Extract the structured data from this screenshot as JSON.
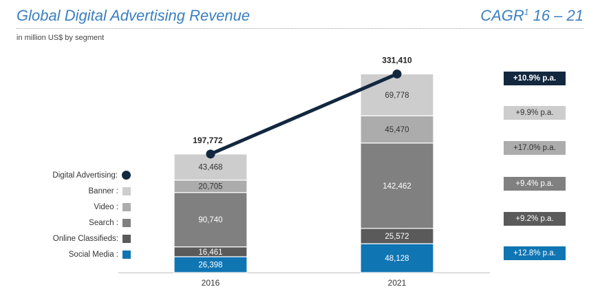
{
  "header": {
    "title": "Global Digital Advertising Revenue",
    "cagr_title": "CAGR",
    "cagr_superscript": "1",
    "cagr_period": " 16 – 21",
    "subtitle": "in million US$ by segment"
  },
  "chart_data": {
    "type": "bar",
    "stacked": true,
    "categories": [
      "2016",
      "2021"
    ],
    "series": [
      {
        "name": "Social Media",
        "values": [
          26398,
          48128
        ],
        "color": "#0f75b3",
        "label_color": "#ffffff"
      },
      {
        "name": "Online Classifieds",
        "values": [
          16461,
          25572
        ],
        "color": "#5a5a5a",
        "label_color": "#ffffff"
      },
      {
        "name": "Search",
        "values": [
          90740,
          142462
        ],
        "color": "#808080",
        "label_color": "#ffffff"
      },
      {
        "name": "Video",
        "values": [
          20705,
          45470
        ],
        "color": "#acacac",
        "label_color": "#333333"
      },
      {
        "name": "Banner",
        "values": [
          43468,
          69778
        ],
        "color": "#cdcdcd",
        "label_color": "#333333"
      }
    ],
    "value_labels": [
      [
        "26,398",
        "16,461",
        "90,740",
        "20,705",
        "43,468"
      ],
      [
        "48,128",
        "25,572",
        "142,462",
        "45,470",
        "69,778"
      ]
    ],
    "total": {
      "name": "Digital Advertising",
      "values": [
        197772,
        331410
      ],
      "labels": [
        "197,772",
        "331,410"
      ],
      "color": "#13283f"
    },
    "ylim": [
      0,
      340000
    ]
  },
  "legend": [
    {
      "label": "Digital Advertising:",
      "type": "dot",
      "color": "#13283f"
    },
    {
      "label": "Banner :",
      "type": "square",
      "color": "#cdcdcd"
    },
    {
      "label": "Video :",
      "type": "square",
      "color": "#acacac"
    },
    {
      "label": "Search :",
      "type": "square",
      "color": "#808080"
    },
    {
      "label": "Online Classifieds:",
      "type": "square",
      "color": "#5a5a5a"
    },
    {
      "label": "Social Media :",
      "type": "square",
      "color": "#0f75b3"
    }
  ],
  "cagr_badges": [
    {
      "label": "+10.9% p.a.",
      "bg": "#13283f",
      "fg": "#ffffff",
      "bold": true
    },
    {
      "label": "+9.9% p.a.",
      "bg": "#cdcdcd",
      "fg": "#333333",
      "bold": false
    },
    {
      "label": "+17.0% p.a.",
      "bg": "#acacac",
      "fg": "#333333",
      "bold": false
    },
    {
      "label": "+9.4% p.a.",
      "bg": "#808080",
      "fg": "#ffffff",
      "bold": false
    },
    {
      "label": "+9.2% p.a.",
      "bg": "#5a5a5a",
      "fg": "#ffffff",
      "bold": false
    },
    {
      "label": "+12.8% p.a.",
      "bg": "#0f75b3",
      "fg": "#ffffff",
      "bold": false
    }
  ]
}
